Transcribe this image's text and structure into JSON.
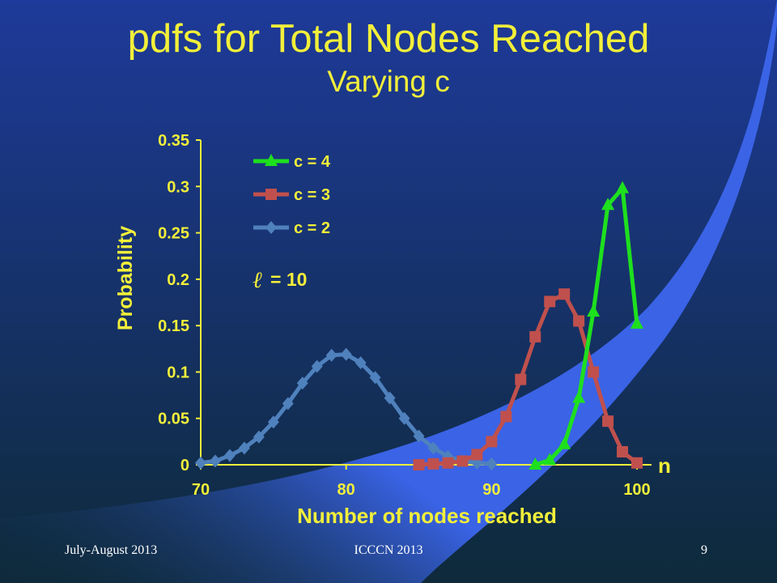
{
  "slide": {
    "title": "pdfs for Total Nodes Reached",
    "subtitle": "Varying c",
    "footer_left": "July-August 2013",
    "footer_center": "ICCCN 2013",
    "page_number": "9",
    "colors": {
      "background_dark": "#0e2a3a",
      "background_blue": "#1e3a9a",
      "swoosh": "#3a63e6",
      "title": "#f2ef3a",
      "footer": "#ffffff"
    }
  },
  "chart_data": {
    "type": "line",
    "title": "",
    "xlabel": "Number of nodes reached",
    "ylabel": "Probability",
    "xlim": [
      70,
      100
    ],
    "ylim": [
      0,
      0.35
    ],
    "xticks": [
      "70",
      "80",
      "90",
      "100"
    ],
    "yticks": [
      "0",
      "0.05",
      "0.1",
      "0.15",
      "0.2",
      "0.25",
      "0.3",
      "0.35"
    ],
    "axis_end_label": "n",
    "annotation": "= 10",
    "annotation_symbol": "ℓ",
    "grid": false,
    "legend_position": "top-left",
    "series": [
      {
        "name": "c = 4",
        "color": "#1ee01e",
        "marker": "triangle",
        "x": [
          93,
          94,
          95,
          96,
          97,
          98,
          99,
          100
        ],
        "y": [
          0,
          0.005,
          0.022,
          0.072,
          0.165,
          0.28,
          0.298,
          0.152
        ]
      },
      {
        "name": "c = 3",
        "color": "#c0504d",
        "marker": "square",
        "x": [
          85,
          86,
          87,
          88,
          89,
          90,
          91,
          92,
          93,
          94,
          95,
          96,
          97,
          98,
          99,
          100
        ],
        "y": [
          0,
          0.001,
          0.002,
          0.004,
          0.011,
          0.025,
          0.052,
          0.092,
          0.138,
          0.176,
          0.184,
          0.155,
          0.1,
          0.047,
          0.014,
          0.002
        ]
      },
      {
        "name": "c = 2",
        "color": "#4f81bd",
        "marker": "diamond",
        "x": [
          70,
          71,
          72,
          73,
          74,
          75,
          76,
          77,
          78,
          79,
          80,
          81,
          82,
          83,
          84,
          85,
          86,
          87,
          88,
          89,
          90
        ],
        "y": [
          0.002,
          0.004,
          0.01,
          0.018,
          0.03,
          0.046,
          0.066,
          0.088,
          0.106,
          0.118,
          0.119,
          0.11,
          0.094,
          0.072,
          0.05,
          0.031,
          0.018,
          0.009,
          0.004,
          0.002,
          0.001
        ]
      }
    ]
  }
}
